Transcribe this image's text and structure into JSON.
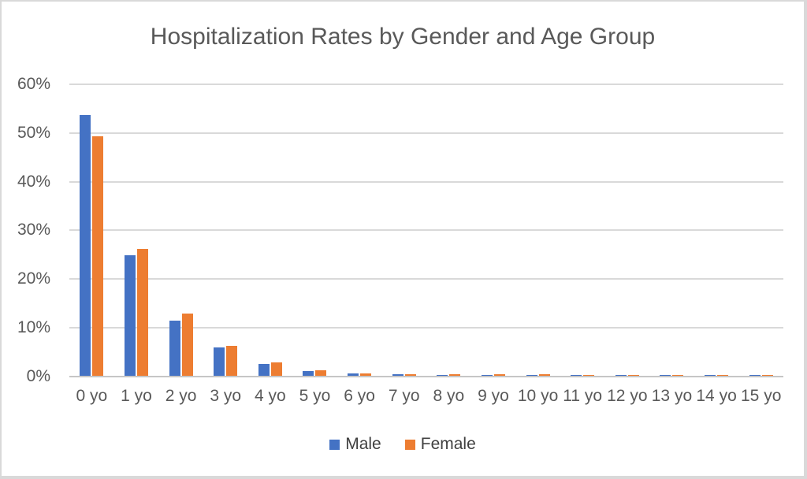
{
  "chart_data": {
    "type": "bar",
    "title": "Hospitalization Rates by Gender and Age Group",
    "categories": [
      "0 yo",
      "1 yo",
      "2 yo",
      "3 yo",
      "4 yo",
      "5 yo",
      "6 yo",
      "7 yo",
      "8 yo",
      "9 yo",
      "10 yo",
      "11 yo",
      "12 yo",
      "13 yo",
      "14 yo",
      "15 yo"
    ],
    "series": [
      {
        "name": "Male",
        "color": "#4472c4",
        "values": [
          53.5,
          24.7,
          11.3,
          5.9,
          2.4,
          1.0,
          0.5,
          0.25,
          0.22,
          0.2,
          0.2,
          0.18,
          0.16,
          0.15,
          0.14,
          0.12
        ]
      },
      {
        "name": "Female",
        "color": "#ed7d31",
        "values": [
          49.1,
          26.0,
          12.8,
          6.1,
          2.7,
          1.2,
          0.5,
          0.3,
          0.27,
          0.25,
          0.25,
          0.22,
          0.2,
          0.2,
          0.18,
          0.15
        ]
      }
    ],
    "xlabel": "",
    "ylabel": "",
    "ylim": [
      0,
      60
    ],
    "ytick_step": 10,
    "ytick_labels": [
      "0%",
      "10%",
      "20%",
      "30%",
      "40%",
      "50%",
      "60%"
    ],
    "grid": "horizontal",
    "legend_position": "bottom",
    "colors": {
      "male": "#4472c4",
      "female": "#ed7d31",
      "text": "#595959",
      "gridline": "#d9d9d9",
      "axis_line": "#c6c6c6",
      "background": "#ffffff",
      "border": "#d9d9d9"
    }
  }
}
